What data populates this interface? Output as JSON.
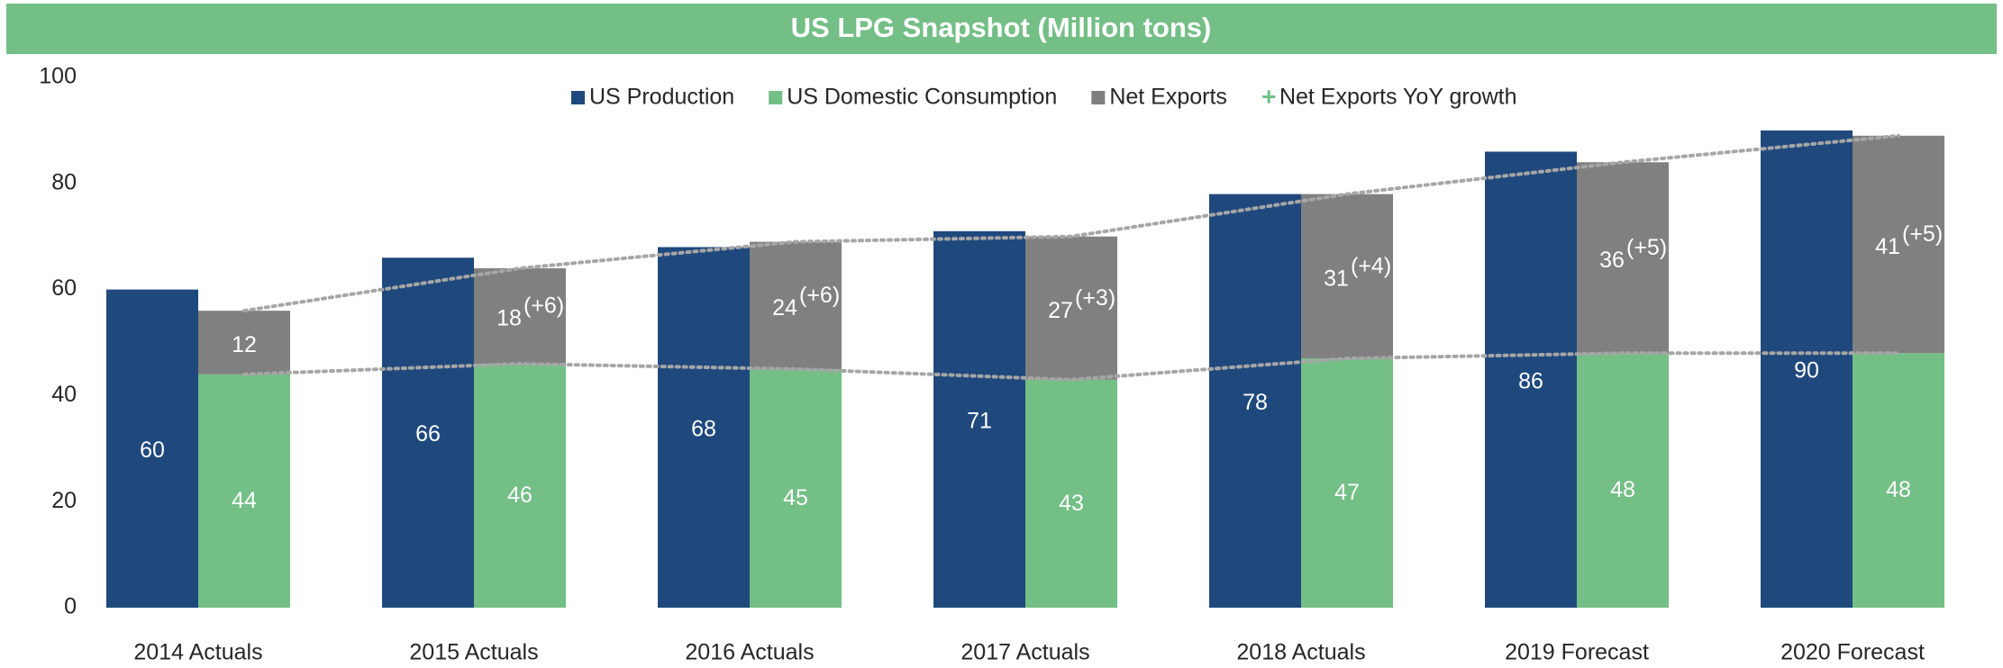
{
  "chart_data": {
    "type": "bar",
    "title": "US LPG Snapshot (Million tons)",
    "categories": [
      "2014 Actuals",
      "2015 Actuals",
      "2016 Actuals",
      "2017 Actuals",
      "2018 Actuals",
      "2019 Forecast",
      "2020 Forecast"
    ],
    "series": [
      {
        "name": "US Production",
        "color": "#1f497d",
        "values": [
          60,
          66,
          68,
          71,
          78,
          86,
          90
        ]
      },
      {
        "name": "US Domestic Consumption",
        "color": "#73bf86",
        "values": [
          44,
          46,
          45,
          43,
          47,
          48,
          48
        ]
      },
      {
        "name": "Net Exports",
        "color": "#808080",
        "values": [
          12,
          18,
          24,
          27,
          31,
          36,
          41
        ],
        "stack_on": "US Domestic Consumption"
      },
      {
        "name": "Net Exports YoY growth",
        "color": "#73bf86",
        "values": [
          null,
          6,
          6,
          3,
          4,
          5,
          5
        ],
        "value_labels": [
          null,
          "(+6)",
          "(+6)",
          "(+3)",
          "(+4)",
          "(+5)",
          "(+5)"
        ]
      }
    ],
    "ylim": [
      0,
      100
    ],
    "yticks": [
      0,
      20,
      40,
      60,
      80,
      100
    ],
    "grid": false,
    "legend": "top"
  }
}
